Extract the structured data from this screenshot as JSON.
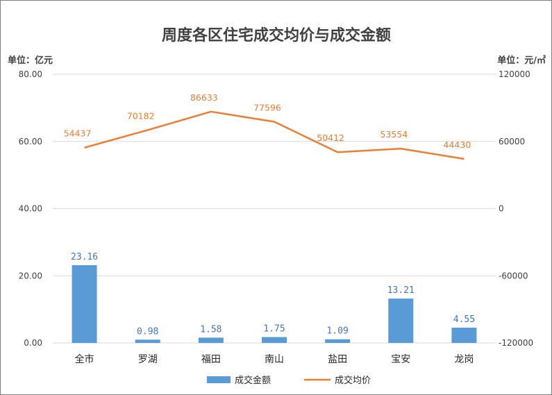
{
  "chart_data": {
    "type": "bar",
    "title": "周度各区住宅成交均价与成交金额",
    "left_axis_unit": "单位：亿元",
    "right_axis_unit": "单位：元/㎡",
    "categories": [
      "全市",
      "罗湖",
      "福田",
      "南山",
      "盐田",
      "宝安",
      "龙岗"
    ],
    "y_left": {
      "min": 0,
      "max": 80,
      "step": 20,
      "tick_labels": [
        "0.00",
        "20.00",
        "40.00",
        "60.00",
        "80.00"
      ]
    },
    "y_right": {
      "min": -120000,
      "max": 120000,
      "step": 60000,
      "tick_labels": [
        "-120000",
        "-60000",
        "0",
        "60000",
        "120000"
      ]
    },
    "grid": true,
    "legend_position": "bottom",
    "series": [
      {
        "name": "成交金额",
        "type": "bar",
        "axis": "left",
        "color": "#5b9bd5",
        "values": [
          23.16,
          0.98,
          1.58,
          1.75,
          1.09,
          13.21,
          4.55
        ],
        "labels": [
          "23.16",
          "0.98",
          "1.58",
          "1.75",
          "1.09",
          "13.21",
          "4.55"
        ]
      },
      {
        "name": "成交均价",
        "type": "line",
        "axis": "right",
        "color": "#ed7d31",
        "values": [
          54437,
          70182,
          86633,
          77596,
          50412,
          53554,
          44430
        ],
        "labels": [
          "54437",
          "70182",
          "86633",
          "77596",
          "50412",
          "53554",
          "44430"
        ]
      }
    ]
  }
}
